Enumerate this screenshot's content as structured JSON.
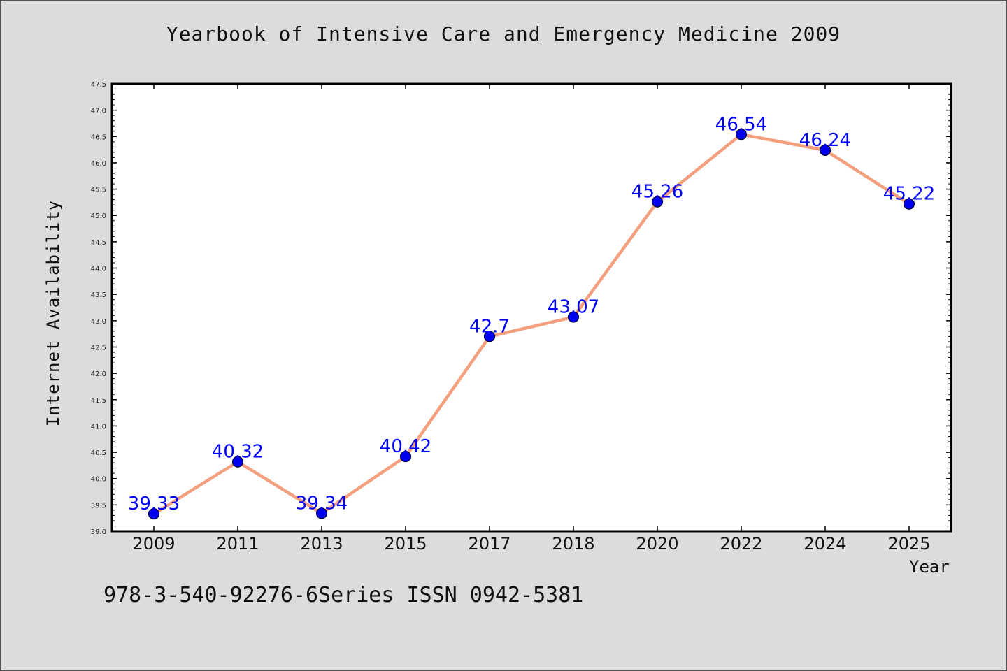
{
  "chart_data": {
    "type": "line",
    "title": "Yearbook of Intensive Care and Emergency Medicine 2009",
    "xlabel": "Year",
    "ylabel": "Internet Availability",
    "footer": "978-3-540-92276-6Series ISSN 0942-5381",
    "categories": [
      "2009",
      "2011",
      "2013",
      "2015",
      "2017",
      "2018",
      "2020",
      "2022",
      "2024",
      "2025"
    ],
    "series": [
      {
        "values": [
          39.33,
          40.32,
          39.34,
          40.42,
          42.7,
          43.07,
          45.26,
          46.54,
          46.24,
          45.22
        ],
        "labels": [
          "39.33",
          "40.32",
          "39.34",
          "40.42",
          "42.7",
          "43.07",
          "45.26",
          "46.54",
          "46.24",
          "45.22"
        ],
        "line_color": "#f4a07f",
        "marker_color": "#0000ee"
      }
    ],
    "ylim": [
      39.0,
      47.5
    ],
    "yticks": [
      "39.0",
      "39.5",
      "40.0",
      "40.5",
      "41.0",
      "41.5",
      "42.0",
      "42.5",
      "43.0",
      "43.5",
      "44.0",
      "44.5",
      "45.0",
      "45.5",
      "46.0",
      "46.5",
      "47.0",
      "47.5"
    ],
    "grid": false,
    "label_color": "#0000ff",
    "background": "#dcdcdc",
    "plot_background": "#ffffff"
  }
}
